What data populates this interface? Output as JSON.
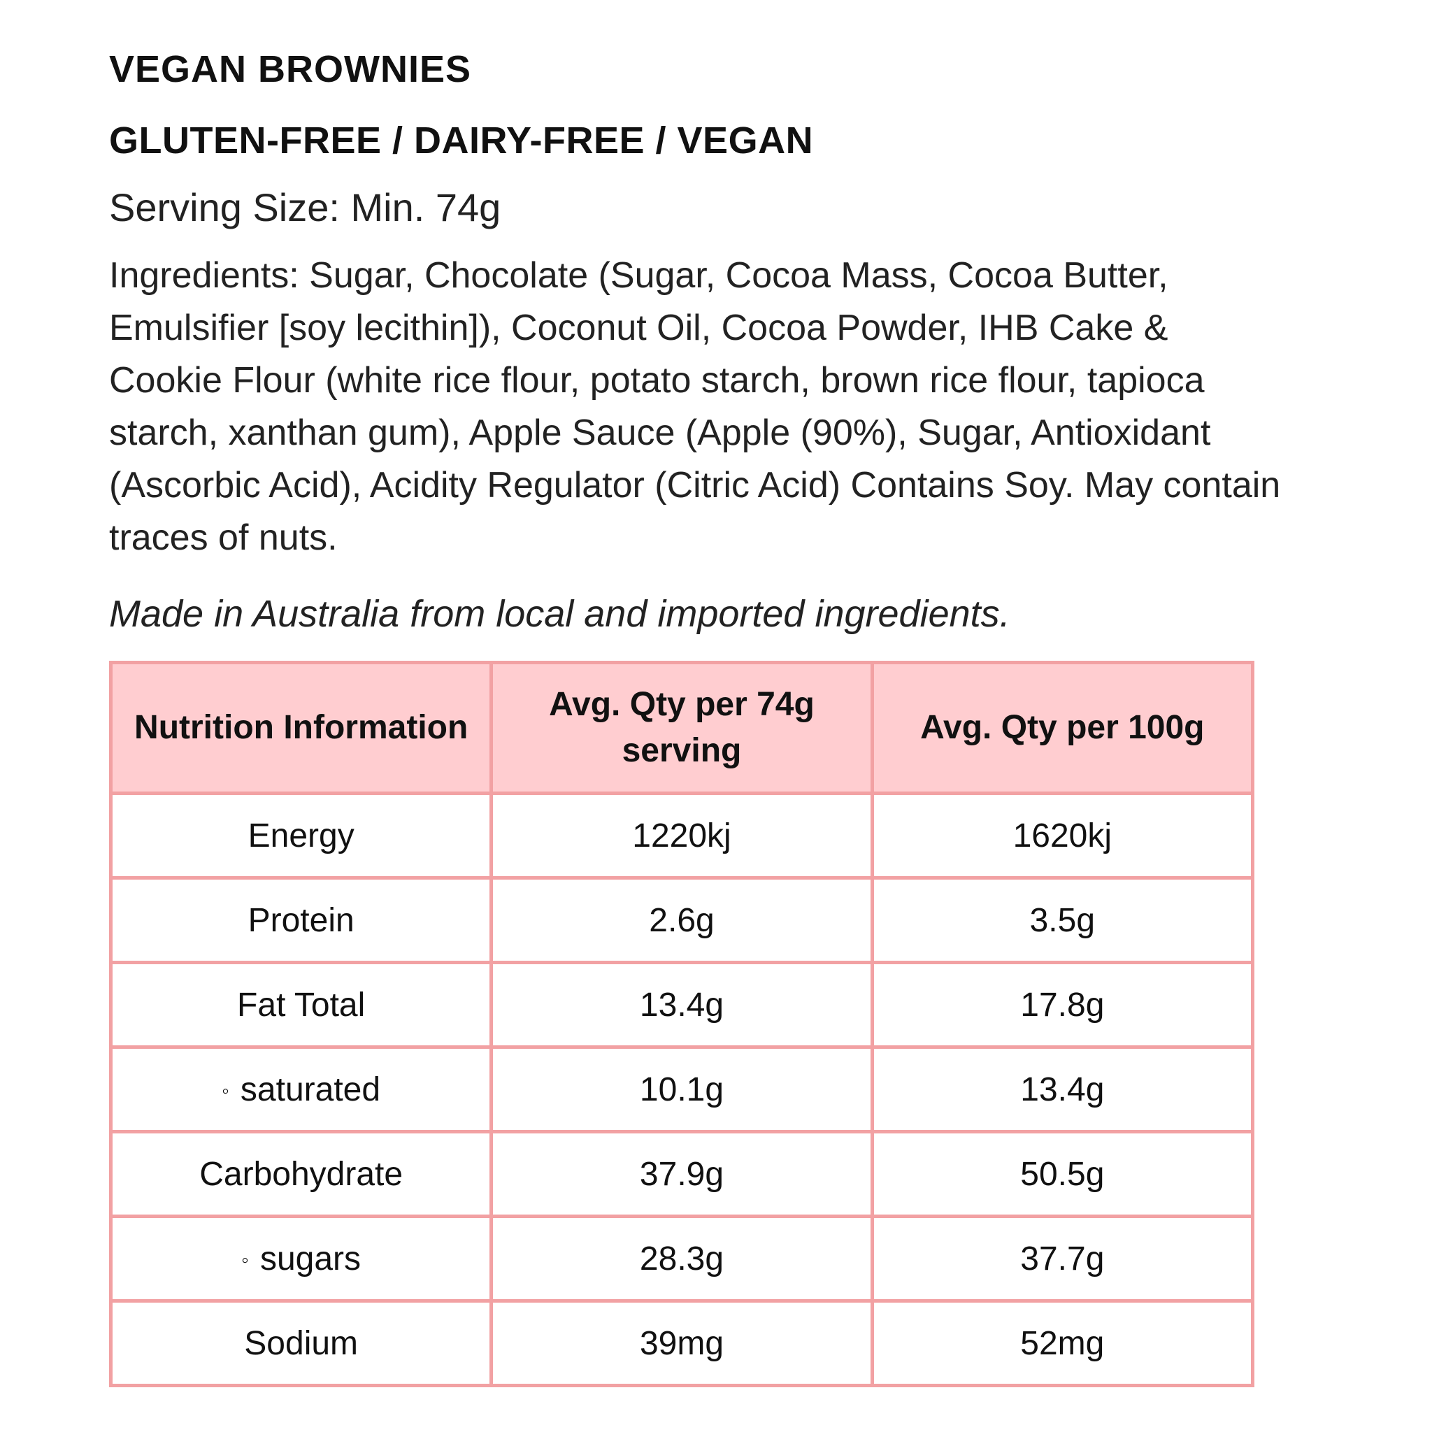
{
  "header": {
    "title": "VEGAN BROWNIES",
    "subtitle": "GLUTEN-FREE / DAIRY-FREE / VEGAN"
  },
  "serving_size": "Serving Size: Min. 74g",
  "ingredients": "Ingredients: Sugar, Chocolate (Sugar, Cocoa Mass, Cocoa Butter, Emulsifier [soy lecithin]), Coconut Oil, Cocoa Powder, IHB Cake & Cookie Flour (white rice flour, potato starch, brown rice flour, tapioca starch, xanthan gum), Apple Sauce (Apple (90%), Sugar, Antioxidant (Ascorbic Acid), Acidity Regulator (Citric Acid) Contains Soy. May contain traces of nuts.",
  "origin_note": "Made in Australia from local and imported ingredients.",
  "table": {
    "columns": [
      "Nutrition Information",
      "Avg. Qty per 74g serving",
      "Avg. Qty per 100g"
    ],
    "rows": [
      [
        "Energy",
        "1220kj",
        "1620kj"
      ],
      [
        "Protein",
        "2.6g",
        "3.5g"
      ],
      [
        "Fat Total",
        "13.4g",
        "17.8g"
      ],
      [
        "saturated",
        "10.1g",
        "13.4g"
      ],
      [
        "Carbohydrate",
        "37.9g",
        "50.5g"
      ],
      [
        "sugars",
        "28.3g",
        "37.7g"
      ],
      [
        "Sodium",
        "39mg",
        "52mg"
      ]
    ],
    "sub_rows": [
      3,
      5
    ]
  }
}
